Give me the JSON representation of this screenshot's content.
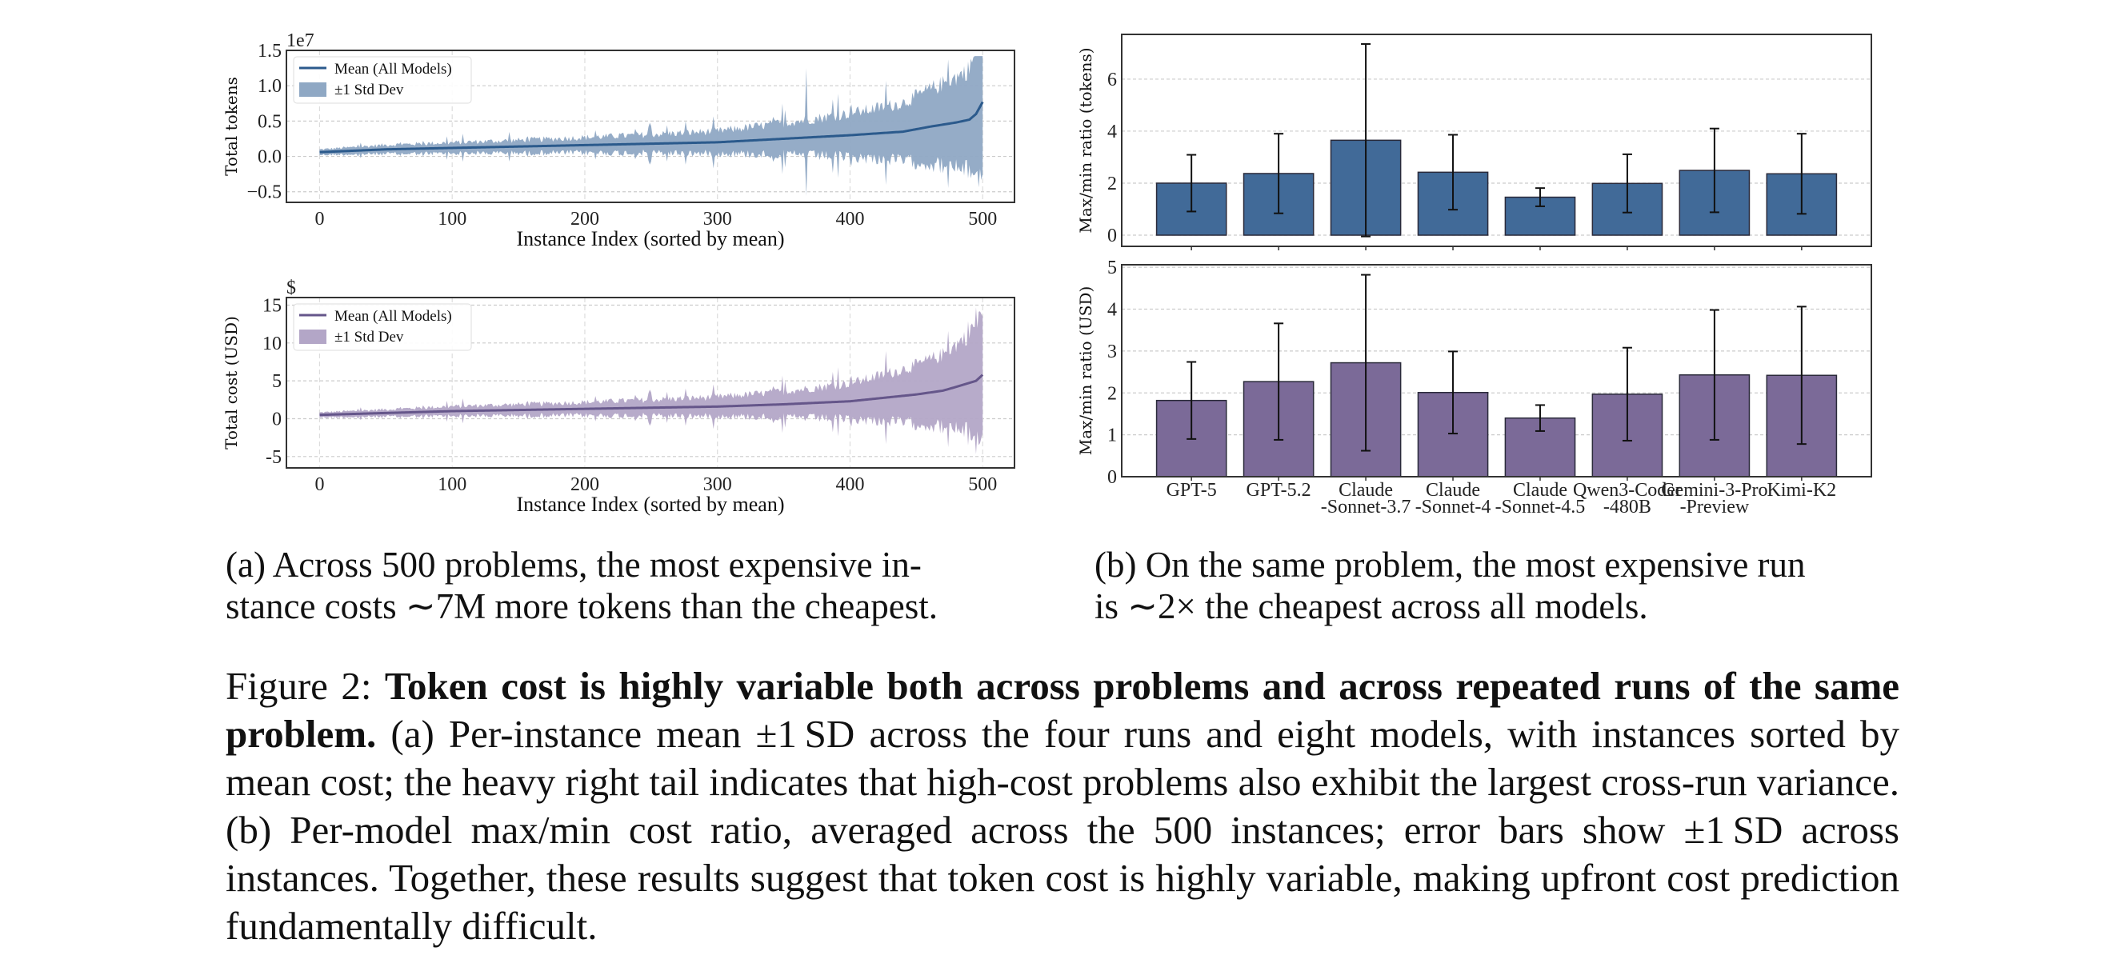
{
  "chart_data": [
    {
      "id": "tokens-line",
      "type": "area",
      "xlabel": "Instance Index (sorted by mean)",
      "ylabel": "Total tokens",
      "offset_label": "1e7",
      "xlim": [
        -25,
        524
      ],
      "ylim": [
        -0.65,
        1.5
      ],
      "xticks": [
        0,
        100,
        200,
        300,
        400,
        500
      ],
      "xtick_labels": [
        "0",
        "100",
        "200",
        "300",
        "400",
        "500"
      ],
      "yticks": [
        -0.5,
        0.0,
        0.5,
        1.0,
        1.5
      ],
      "ytick_labels": [
        "−0.5",
        "0.0",
        "0.5",
        "1.0",
        "1.5"
      ],
      "legend": [
        "Mean (All Models)",
        "±1 Std Dev"
      ],
      "legend_position": "top-left",
      "grid": true,
      "mean_anchors": [
        [
          0,
          0.06
        ],
        [
          50,
          0.1
        ],
        [
          100,
          0.12
        ],
        [
          150,
          0.14
        ],
        [
          200,
          0.16
        ],
        [
          250,
          0.18
        ],
        [
          300,
          0.2
        ],
        [
          350,
          0.25
        ],
        [
          400,
          0.3
        ],
        [
          440,
          0.35
        ],
        [
          460,
          0.42
        ],
        [
          480,
          0.48
        ],
        [
          490,
          0.52
        ],
        [
          495,
          0.6
        ],
        [
          500,
          0.77
        ]
      ],
      "band_peaks": {
        "max_upper": 1.42,
        "min_lower": -0.56
      },
      "colors": {
        "line": "#2b5a8c",
        "band": "#8fa8c4"
      }
    },
    {
      "id": "cost-line",
      "type": "area",
      "xlabel": "Instance Index (sorted by mean)",
      "ylabel": "Total cost (USD)",
      "offset_label": "$",
      "xlim": [
        -25,
        524
      ],
      "ylim": [
        -6.5,
        16
      ],
      "xticks": [
        0,
        100,
        200,
        300,
        400,
        500
      ],
      "xtick_labels": [
        "0",
        "100",
        "200",
        "300",
        "400",
        "500"
      ],
      "yticks": [
        -5,
        0,
        5,
        10,
        15
      ],
      "ytick_labels": [
        "-5",
        "0",
        "5",
        "10",
        "15"
      ],
      "legend": [
        "Mean (All Models)",
        "±1 Std Dev"
      ],
      "legend_position": "top-left",
      "grid": true,
      "mean_anchors": [
        [
          0,
          0.5
        ],
        [
          100,
          1.0
        ],
        [
          200,
          1.3
        ],
        [
          300,
          1.6
        ],
        [
          350,
          1.9
        ],
        [
          400,
          2.3
        ],
        [
          450,
          3.2
        ],
        [
          470,
          3.7
        ],
        [
          480,
          4.2
        ],
        [
          495,
          5.0
        ],
        [
          500,
          5.8
        ]
      ],
      "band_peaks": {
        "max_upper": 15,
        "min_lower": -6.1
      },
      "colors": {
        "line": "#65568a",
        "band": "#b3a6c7"
      }
    },
    {
      "id": "tokens-bar",
      "type": "bar",
      "ylabel": "Max/min ratio (tokens)",
      "ylim": [
        -0.43,
        7.72
      ],
      "yticks": [
        0,
        2,
        4,
        6
      ],
      "ytick_labels": [
        "0",
        "2",
        "4",
        "6"
      ],
      "categories": [
        "GPT-5",
        "GPT-5.2",
        "Claude -Sonnet-3.7",
        "Claude -Sonnet-4",
        "Claude -Sonnet-4.5",
        "Qwen3-Coder -480B",
        "Gemini-3-Pro -Preview",
        "Kimi-K2"
      ],
      "values": [
        2.0,
        2.37,
        3.65,
        2.42,
        1.46,
        1.99,
        2.49,
        2.36
      ],
      "errors": [
        1.09,
        1.53,
        3.7,
        1.44,
        0.35,
        1.12,
        1.61,
        1.54
      ],
      "grid": true,
      "colors": {
        "bar": "#416a98"
      }
    },
    {
      "id": "cost-bar",
      "type": "bar",
      "ylabel": "Max/min ratio (USD)",
      "ylim": [
        0,
        5.06
      ],
      "yticks": [
        0,
        1,
        2,
        3,
        4,
        5
      ],
      "ytick_labels": [
        "0",
        "1",
        "2",
        "3",
        "4",
        "5"
      ],
      "categories": [
        "GPT-5",
        "GPT-5.2",
        "Claude -Sonnet-3.7",
        "Claude -Sonnet-4",
        "Claude -Sonnet-4.5",
        "Qwen3-Coder -480B",
        "Gemini-3-Pro -Preview",
        "Kimi-K2"
      ],
      "category_lines": [
        [
          "GPT-5"
        ],
        [
          "GPT-5.2"
        ],
        [
          "Claude",
          "-Sonnet-3.7"
        ],
        [
          "Claude",
          "-Sonnet-4"
        ],
        [
          "Claude",
          "-Sonnet-4.5"
        ],
        [
          "Qwen3-Coder",
          "-480B"
        ],
        [
          "Gemini-3-Pro",
          "-Preview"
        ],
        [
          "Kimi-K2"
        ]
      ],
      "values": [
        1.82,
        2.27,
        2.72,
        2.01,
        1.4,
        1.97,
        2.43,
        2.42
      ],
      "errors": [
        0.92,
        1.39,
        2.1,
        0.98,
        0.31,
        1.11,
        1.55,
        1.64
      ],
      "grid": true,
      "colors": {
        "bar": "#7b6a98"
      }
    }
  ],
  "captions": {
    "a_line1": "(a) Across 500 problems, the most expensive in-",
    "a_line2": "stance costs ∼7M more tokens than the cheapest.",
    "b_line1": "(b) On the same problem, the most expensive run",
    "b_line2": "is ∼2× the cheapest across all models.",
    "figure_label": "Figure 2: ",
    "figure_bold": "Token cost is highly variable both across problems and across repeated runs of the same problem.",
    "figure_body": " (a) Per-instance mean ±1 SD across the four runs and eight models, with instances sorted by mean cost; the heavy right tail indicates that high-cost problems also exhibit the largest cross-run variance. (b) Per-model max/min cost ratio, averaged across the 500 instances; error bars show ±1 SD across instances. Together, these results suggest that token cost is highly variable, making upfront cost prediction fundamentally difficult."
  }
}
